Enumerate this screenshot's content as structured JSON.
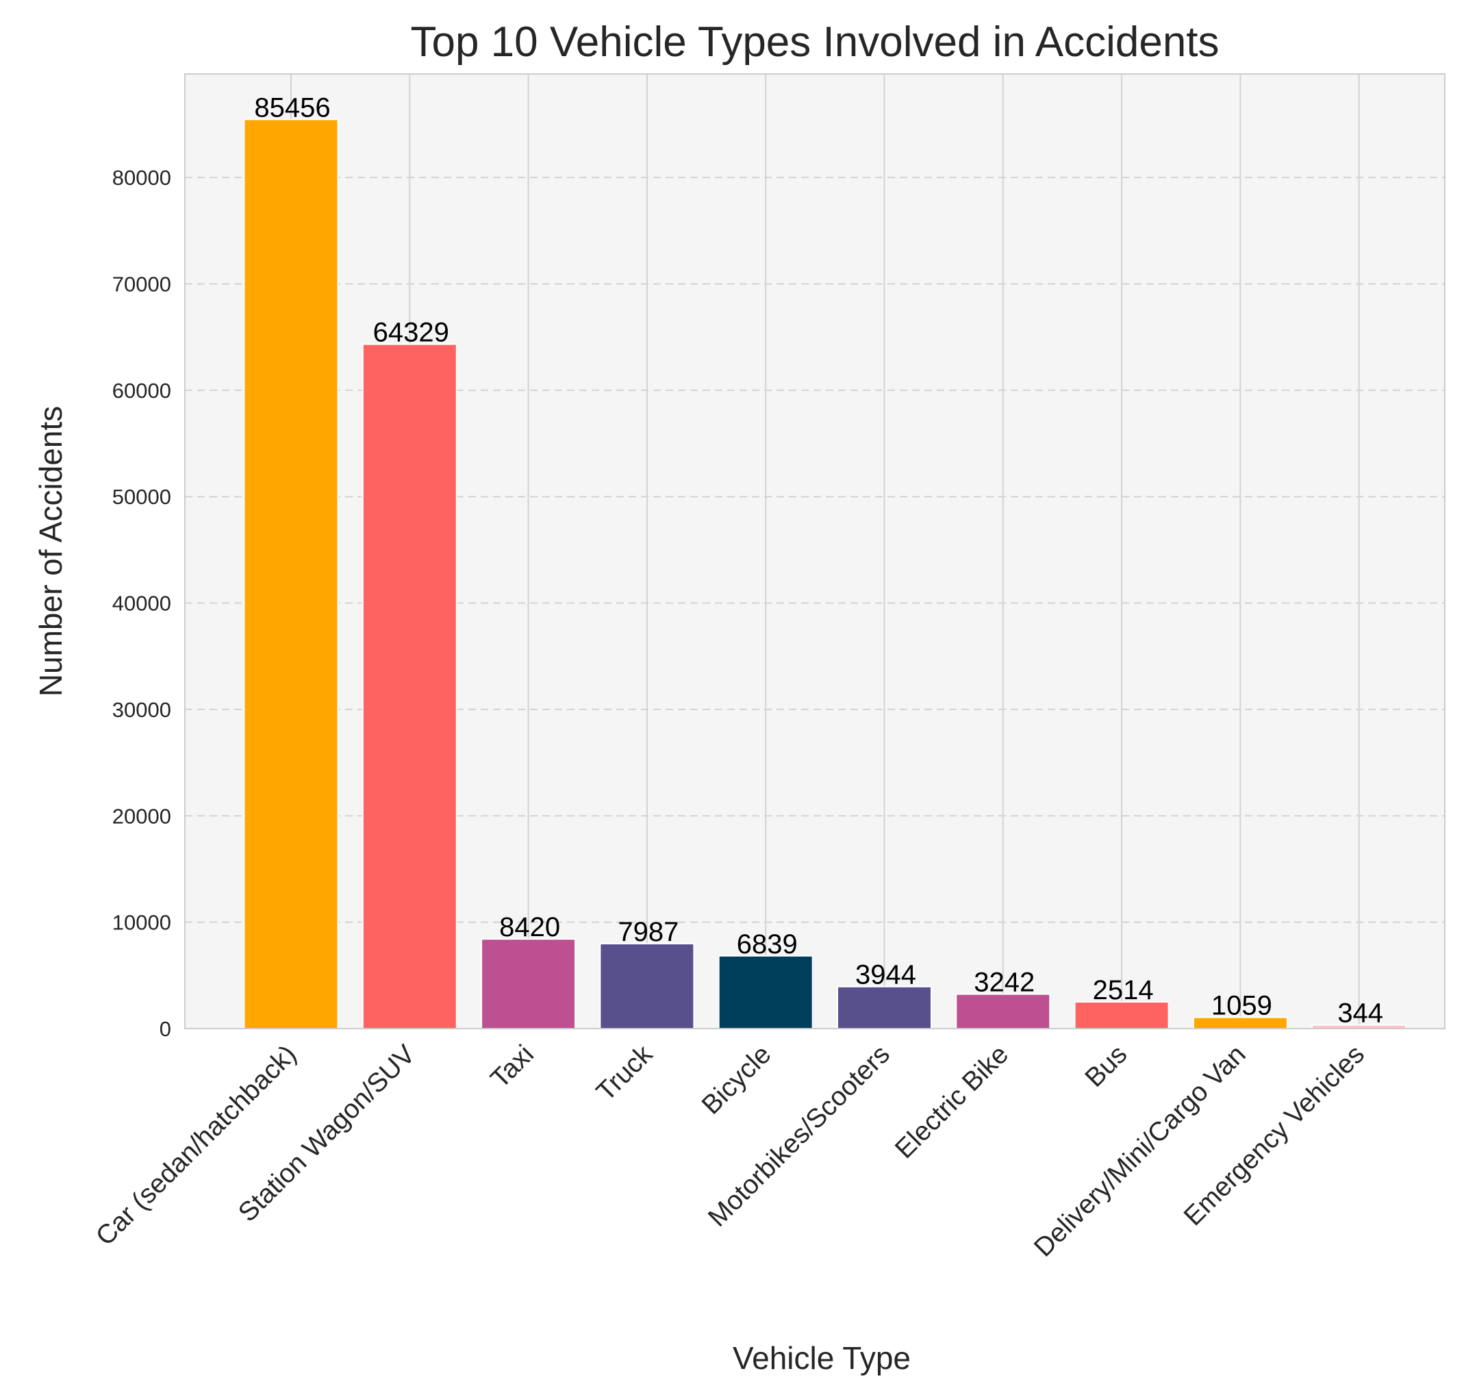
{
  "chart_data": {
    "type": "bar",
    "title": "Top 10 Vehicle Types Involved in Accidents",
    "xlabel": "Vehicle Type",
    "ylabel": "Number of Accidents",
    "categories": [
      "Car (sedan/hatchback)",
      "Station Wagon/SUV",
      "Taxi",
      "Truck",
      "Bicycle",
      "Motorbikes/Scooters",
      "Electric Bike",
      "Bus",
      "Delivery/Mini/Cargo Van",
      "Emergency Vehicles"
    ],
    "values": [
      85456,
      64329,
      8420,
      7987,
      6839,
      3944,
      3242,
      2514,
      1059,
      344
    ],
    "colors": [
      "#FFA600",
      "#FF6361",
      "#BC5090",
      "#58508D",
      "#003F5C",
      "#58508D",
      "#BC5090",
      "#FF6361",
      "#FFA600",
      "#FFC0CB"
    ],
    "ylim": [
      0,
      89728.8
    ],
    "yticks": [
      0,
      10000,
      20000,
      30000,
      40000,
      50000,
      60000,
      70000,
      80000
    ],
    "grid": true,
    "plot_background": "#F5F5F5",
    "grid_color": "#D3D3D3"
  }
}
